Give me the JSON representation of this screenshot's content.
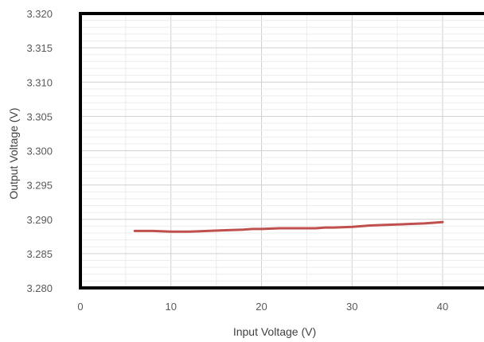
{
  "chart_data": {
    "type": "line",
    "xlabel": "Input Voltage (V)",
    "ylabel": "Output Voltage (V)",
    "xlim": [
      0,
      45
    ],
    "ylim": [
      3.28,
      3.32
    ],
    "x_ticks": [
      0,
      10,
      20,
      30,
      40
    ],
    "x_tick_labels": [
      "0",
      "10",
      "20",
      "30",
      "40"
    ],
    "y_ticks": [
      3.28,
      3.285,
      3.29,
      3.295,
      3.3,
      3.305,
      3.31,
      3.315,
      3.32
    ],
    "y_tick_labels": [
      "3.280",
      "3.285",
      "3.290",
      "3.295",
      "3.300",
      "3.305",
      "3.310",
      "3.315",
      "3.320"
    ],
    "grid": true,
    "legend": "none",
    "series": [
      {
        "color": "#c0504d",
        "x": [
          6,
          8,
          10,
          12,
          14,
          16,
          18,
          19,
          20,
          22,
          24,
          26,
          27,
          28,
          30,
          32,
          34,
          36,
          38,
          40
        ],
        "y": [
          3.2883,
          3.2883,
          3.2882,
          3.2882,
          3.2883,
          3.2884,
          3.2885,
          3.2886,
          3.2886,
          3.2887,
          3.2887,
          3.2887,
          3.2888,
          3.2888,
          3.2889,
          3.2891,
          3.2892,
          3.2893,
          3.2894,
          3.2896
        ]
      }
    ]
  }
}
